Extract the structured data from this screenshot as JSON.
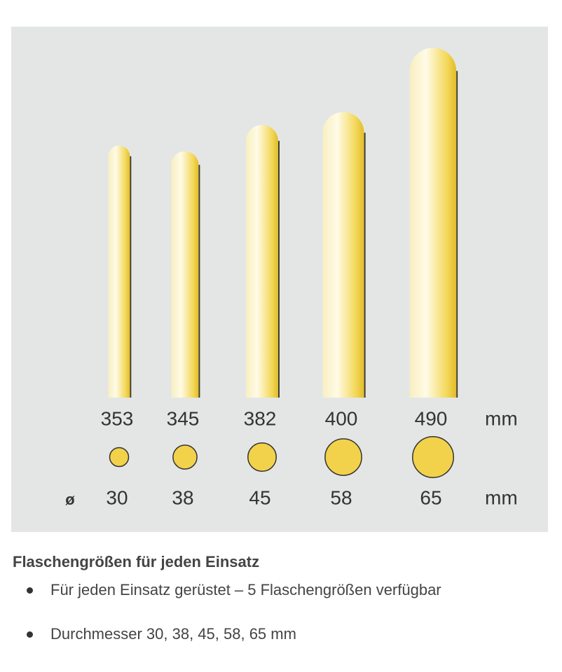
{
  "figure": {
    "bottles": [
      {
        "height": 353,
        "diameter": 30
      },
      {
        "height": 345,
        "diameter": 38
      },
      {
        "height": 382,
        "diameter": 45
      },
      {
        "height": 400,
        "diameter": 58
      },
      {
        "height": 490,
        "diameter": 65
      }
    ],
    "height_unit": "mm",
    "diameter_symbol": "ø",
    "diameter_unit": "mm"
  },
  "heading": "Flaschengrößen für jeden Einsatz",
  "bullets": [
    "Für jeden Einsatz gerüstet – 5 Flaschengrößen verfügbar",
    "Durchmesser 30, 38, 45, 58, 65 mm"
  ]
}
